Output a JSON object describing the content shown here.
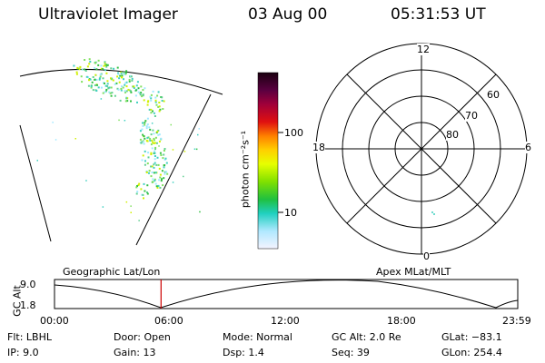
{
  "header": {
    "title": "Ultraviolet Imager",
    "date": "03 Aug 00",
    "time": "05:31:53 UT"
  },
  "colorbar": {
    "label": "photon cm⁻²s⁻¹",
    "ticks": [
      "100",
      "10"
    ]
  },
  "polar": {
    "mlt_labels": {
      "top": "12",
      "left": "18",
      "right": "6",
      "bottom": "0"
    },
    "lat_labels": [
      "60",
      "70",
      "80"
    ]
  },
  "timeline": {
    "left_title": "Geographic Lat/Lon",
    "right_title": "Apex MLat/MLT",
    "ylabel": "GC Alt",
    "y_ticks": [
      "9.0",
      "1.8"
    ],
    "x_ticks": [
      "00:00",
      "06:00",
      "12:00",
      "18:00",
      "23:59"
    ],
    "current_time_fraction": 0.23
  },
  "info": {
    "row1": {
      "flt": "Flt: LBHL",
      "door": "Door: Open",
      "mode": "Mode: Normal",
      "gcalt": "GC Alt: 2.0 Re",
      "glat": "GLat: −83.1"
    },
    "row2": {
      "ip": "IP:  9.0",
      "gain": "Gain: 13",
      "dsp": "Dsp:    1.4",
      "seq": "Seq: 39",
      "glon": "GLon: 254.4"
    }
  },
  "colors": {
    "marker": "#cc0000"
  },
  "icons": {
    "image_panel": "auroral-image",
    "polar_plot": "polar-grid"
  }
}
